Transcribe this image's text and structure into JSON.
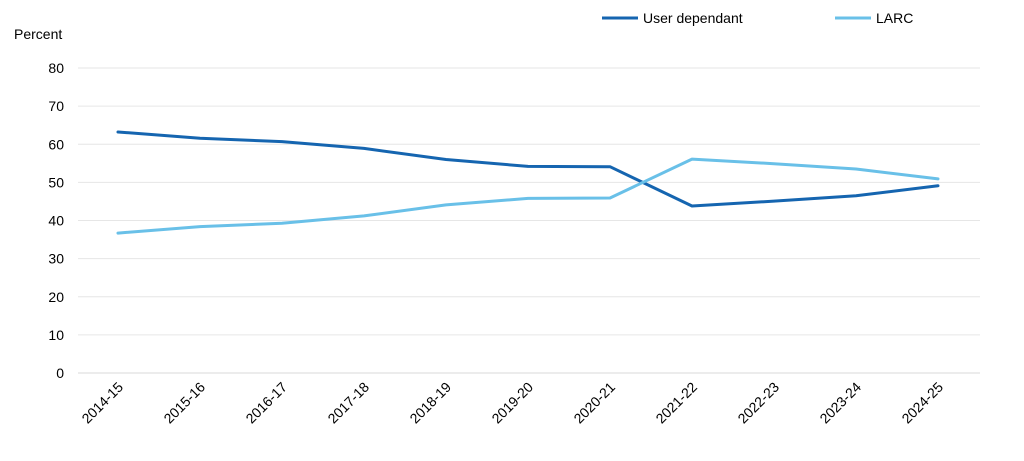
{
  "chart_data": {
    "type": "line",
    "title": "",
    "xlabel": "",
    "ylabel": "Percent",
    "ylim": [
      0,
      80
    ],
    "yticks": [
      "0",
      "10",
      "20",
      "30",
      "40",
      "50",
      "60",
      "70",
      "80"
    ],
    "categories": [
      "2014-15",
      "2015-16",
      "2016-17",
      "2017-18",
      "2018-19",
      "2019-20",
      "2020-21",
      "2021-22",
      "2022-23",
      "2023-24",
      "2024-25"
    ],
    "grid": true,
    "legend_position": "top-right",
    "series": [
      {
        "name": "User dependant",
        "color": "#1565b0",
        "values": [
          63.2,
          61.6,
          60.7,
          58.9,
          56.0,
          54.2,
          54.1,
          43.8,
          45.1,
          46.5,
          49.1
        ]
      },
      {
        "name": "LARC",
        "color": "#69c0e8",
        "values": [
          36.7,
          38.4,
          39.3,
          41.2,
          44.1,
          45.8,
          45.9,
          56.1,
          54.9,
          53.5,
          50.9
        ]
      }
    ]
  }
}
